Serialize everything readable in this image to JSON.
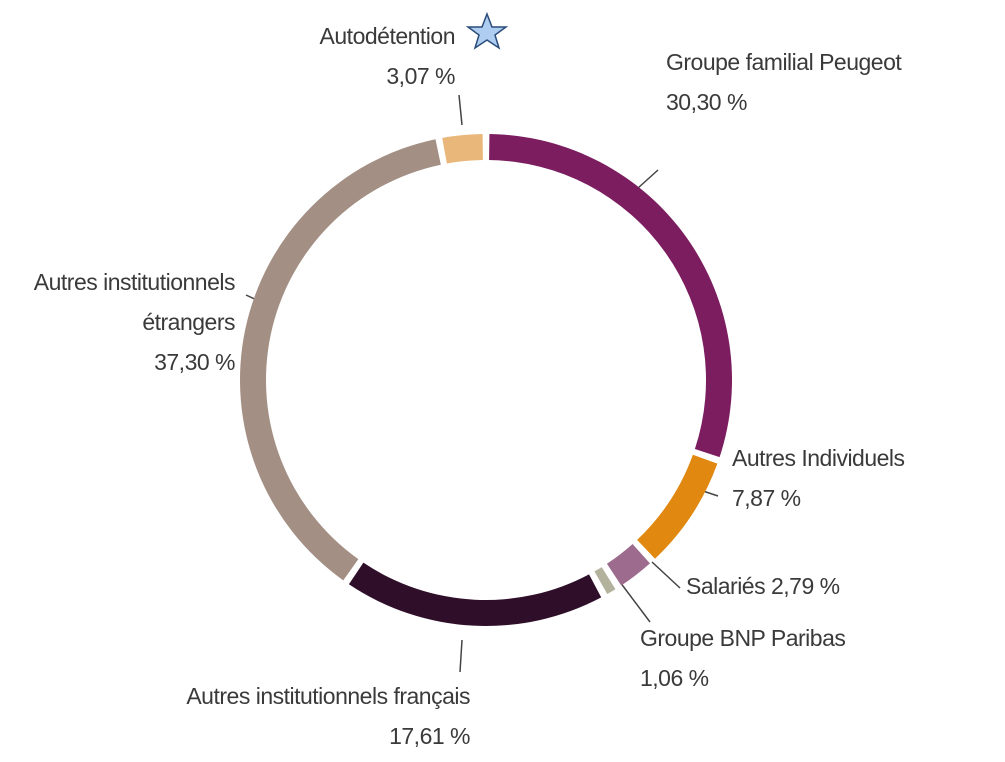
{
  "chart_data": {
    "type": "donut",
    "categories": [
      "Groupe familial Peugeot",
      "Autres Individuels",
      "Salariés",
      "Groupe BNP Paribas",
      "Autres institutionnels français",
      "Autres institutionnels étrangers",
      "Autodétention"
    ],
    "values": [
      30.3,
      7.87,
      2.79,
      1.06,
      17.61,
      37.3,
      3.07
    ],
    "value_labels": [
      "30,30 %",
      "7,87 %",
      "2,79 %",
      "1,06 %",
      "17,61 %",
      "37,30 %",
      "3,07 %"
    ],
    "colors": [
      "#7b1d5f",
      "#e0880f",
      "#9c6b8e",
      "#b3b29c",
      "#2f0e2a",
      "#a38f83",
      "#e9b77a"
    ]
  }
}
